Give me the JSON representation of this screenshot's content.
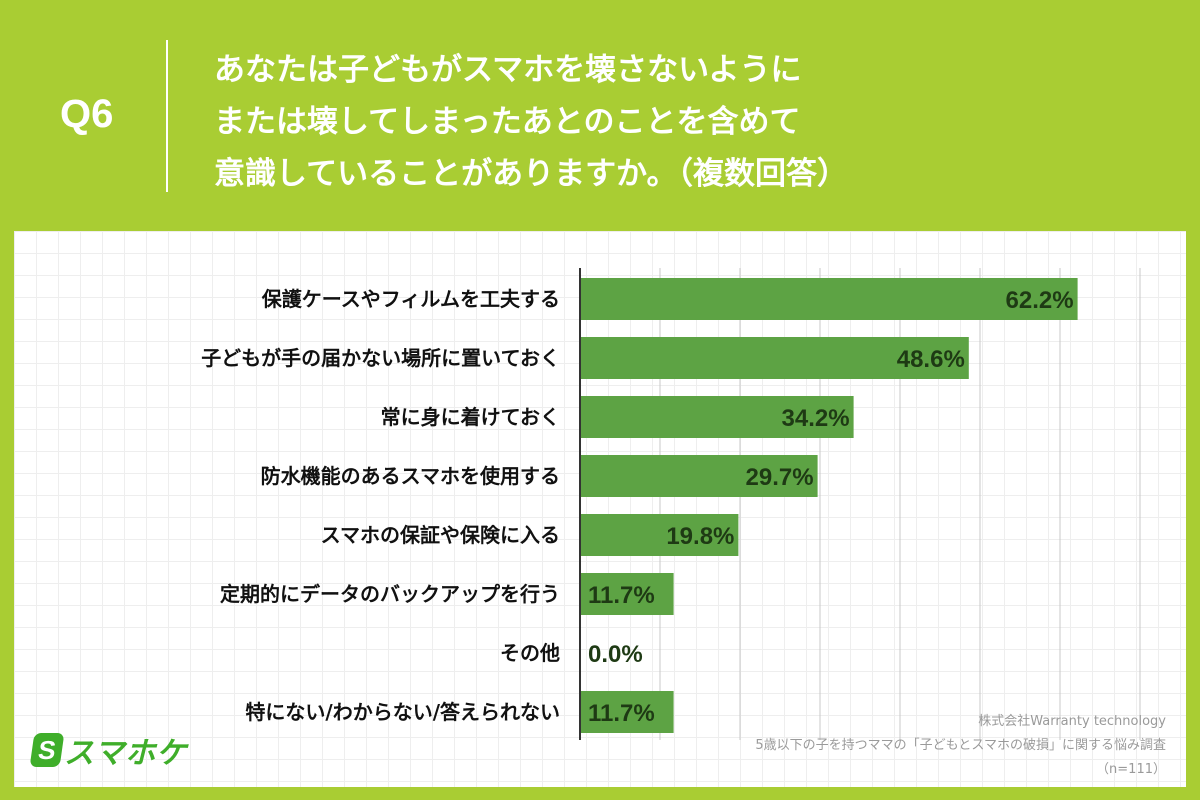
{
  "header": {
    "question_number": "Q6",
    "question_lines": [
      "あなたは子どもがスマホを壊さないように",
      "または壊してしまったあとのことを含めて",
      "意識していることがありますか。（複数回答）"
    ]
  },
  "colors": {
    "background": "#a9cd33",
    "bar": "#5da344",
    "value_text": "#1e3a14",
    "logo": "#3fae2a"
  },
  "chart_data": {
    "type": "bar",
    "orientation": "horizontal",
    "categories": [
      "保護ケースやフィルムを工夫する",
      "子どもが手の届かない場所に置いておく",
      "常に身に着けておく",
      "防水機能のあるスマホを使用する",
      "スマホの保証や保険に入る",
      "定期的にデータのバックアップを行う",
      "その他",
      "特にない/わからない/答えられない"
    ],
    "values": [
      62.2,
      48.6,
      34.2,
      29.7,
      19.8,
      11.7,
      0.0,
      11.7
    ],
    "value_labels": [
      "62.2%",
      "48.6%",
      "34.2%",
      "29.7%",
      "19.8%",
      "11.7%",
      "0.0%",
      "11.7%"
    ],
    "unit": "%",
    "xlim": [
      0,
      70
    ],
    "gridlines": [
      0,
      10,
      20,
      30,
      40,
      50,
      60,
      70
    ],
    "grid": true,
    "axis_ticks_shown": false
  },
  "logo": {
    "mark": "S",
    "text": "スマホケ"
  },
  "source": {
    "company": "株式会社Warranty technology",
    "survey": "5歳以下の子を持つママの「子どもとスマホの破損」に関する悩み調査",
    "sample": "（n=111）"
  }
}
